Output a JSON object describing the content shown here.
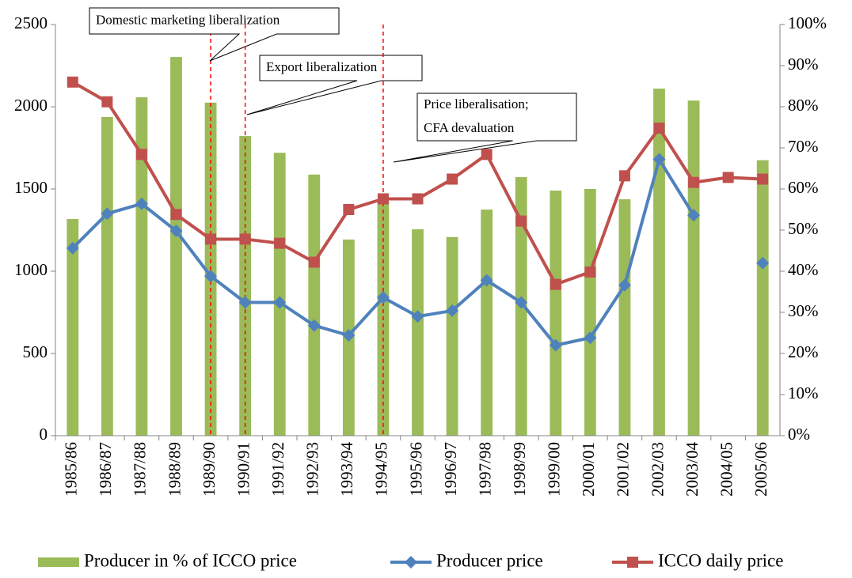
{
  "chart_data": {
    "type": "combo",
    "categories": [
      "1985/86",
      "1986/87",
      "1987/88",
      "1988/89",
      "1989/90",
      "1990/91",
      "1991/92",
      "1992/93",
      "1993/94",
      "1994/95",
      "1995/96",
      "1996/97",
      "1997/98",
      "1998/99",
      "1999/00",
      "2000/01",
      "2001/02",
      "2002/03",
      "2003/04",
      "2004/05",
      "2005/06"
    ],
    "series": [
      {
        "name": "Producer in % of ICCO price",
        "kind": "bar",
        "axis": "y2",
        "color": "#9bbb59",
        "values": [
          52.7,
          77.5,
          82.3,
          92.1,
          81,
          72.9,
          68.8,
          63.5,
          47.7,
          57,
          50.2,
          48.3,
          55,
          62.9,
          59.6,
          60,
          57.5,
          84.4,
          81.5,
          null,
          67
        ]
      },
      {
        "name": "Producer price",
        "kind": "line",
        "marker": "diamond",
        "color": "#4f81bd",
        "values": [
          1140,
          1350,
          1410,
          1245,
          970,
          810,
          810,
          670,
          610,
          840,
          725,
          760,
          945,
          810,
          550,
          595,
          915,
          1680,
          1340,
          null,
          1050
        ]
      },
      {
        "name": "ICCO daily price",
        "kind": "line",
        "marker": "square",
        "color": "#c0504d",
        "values": [
          2150,
          2030,
          1710,
          1345,
          1195,
          1195,
          1170,
          1055,
          1375,
          1440,
          1440,
          1560,
          1710,
          1305,
          920,
          995,
          1580,
          1870,
          1540,
          1570,
          1560
        ]
      }
    ],
    "ylim": [
      0,
      2500
    ],
    "yticks": [
      0,
      500,
      1000,
      1500,
      2000,
      2500
    ],
    "y2lim": [
      0,
      100
    ],
    "y2ticks": [
      {
        "value": 0,
        "label": "0%"
      },
      {
        "value": 10,
        "label": "10%"
      },
      {
        "value": 20,
        "label": "20%"
      },
      {
        "value": 30,
        "label": "30%"
      },
      {
        "value": 40,
        "label": "40%"
      },
      {
        "value": 50,
        "label": "50%"
      },
      {
        "value": 60,
        "label": "60%"
      },
      {
        "value": 70,
        "label": "70%"
      },
      {
        "value": 80,
        "label": "80%"
      },
      {
        "value": 90,
        "label": "90%"
      },
      {
        "value": 100,
        "label": "100%"
      }
    ],
    "grid": false,
    "legend": "bottom",
    "annotations": [
      {
        "x": "1989/90",
        "lines": [
          "Domestic marketing liberalization"
        ]
      },
      {
        "x": "1990/91",
        "lines": [
          "Export liberalization"
        ]
      },
      {
        "x": "1994/95",
        "lines": [
          "Price liberalisation;",
          "CFA devaluation"
        ]
      }
    ]
  }
}
